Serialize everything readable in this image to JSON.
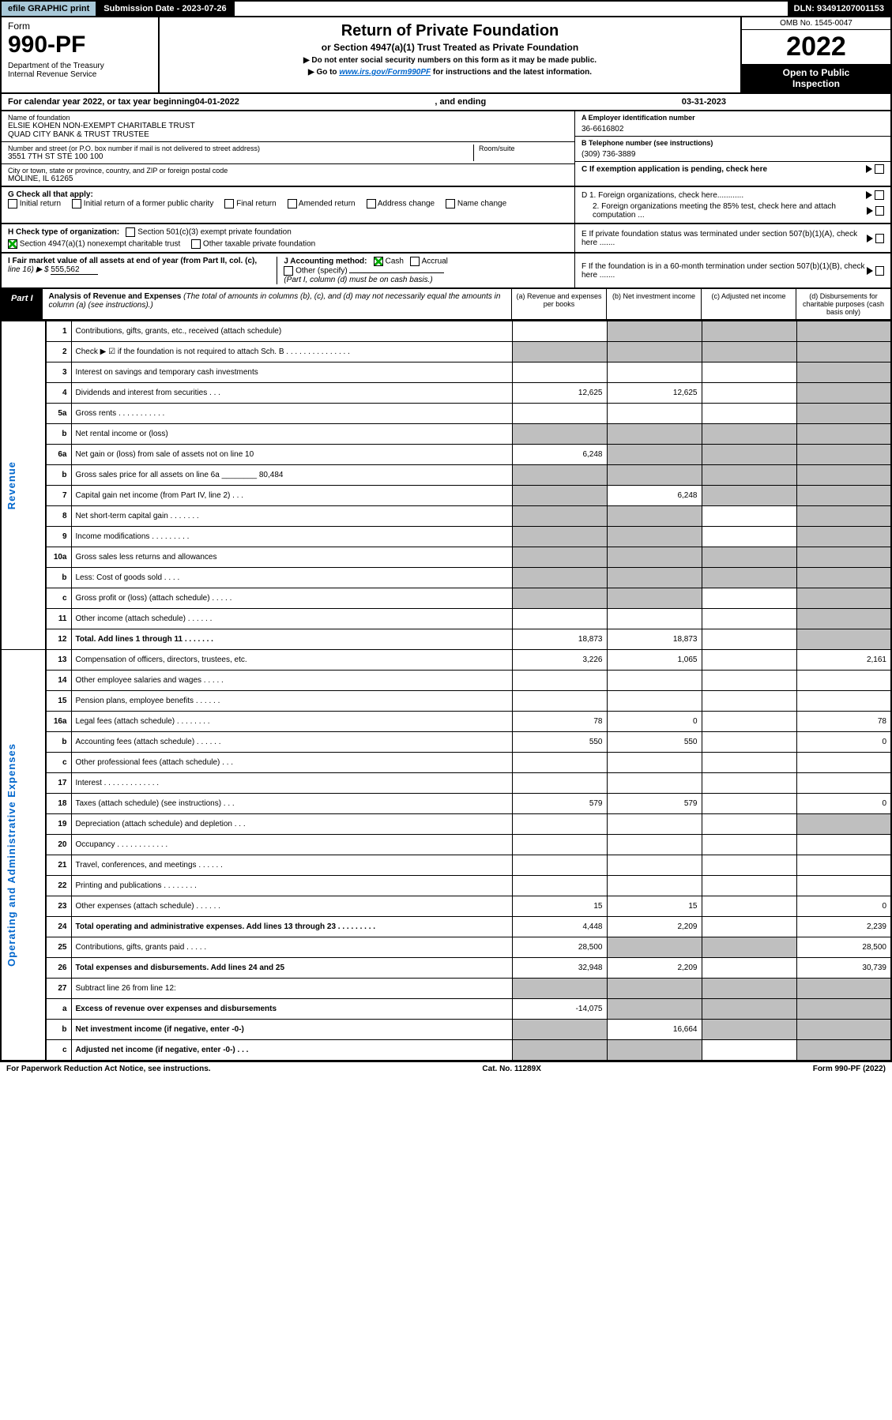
{
  "top": {
    "efile": "efile GRAPHIC print",
    "sub_label": "Submission Date - 2023-07-26",
    "dln": "DLN: 93491207001153"
  },
  "header": {
    "form_word": "Form",
    "form_no": "990-PF",
    "dept": "Department of the Treasury\nInternal Revenue Service",
    "title": "Return of Private Foundation",
    "subtitle": "or Section 4947(a)(1) Trust Treated as Private Foundation",
    "note1": "▶ Do not enter social security numbers on this form as it may be made public.",
    "note2_pre": "▶ Go to ",
    "note2_link": "www.irs.gov/Form990PF",
    "note2_post": " for instructions and the latest information.",
    "omb": "OMB No. 1545-0047",
    "year": "2022",
    "open": "Open to Public\nInspection"
  },
  "cal": {
    "pre": "For calendar year 2022, or tax year beginning ",
    "begin": "04-01-2022",
    "mid": " , and ending ",
    "end": "03-31-2023"
  },
  "info": {
    "name_lbl": "Name of foundation",
    "name": "ELSIE KOHEN NON-EXEMPT CHARITABLE TRUST\nQUAD CITY BANK & TRUST TRUSTEE",
    "addr_lbl": "Number and street (or P.O. box number if mail is not delivered to street address)",
    "addr": "3551 7TH ST STE 100 100",
    "room_lbl": "Room/suite",
    "city_lbl": "City or town, state or province, country, and ZIP or foreign postal code",
    "city": "MOLINE, IL  61265",
    "ein_lbl": "A Employer identification number",
    "ein": "36-6616802",
    "tel_lbl": "B Telephone number (see instructions)",
    "tel": "(309) 736-3889",
    "c": "C If exemption application is pending, check here",
    "d1": "D 1. Foreign organizations, check here............",
    "d2": "2. Foreign organizations meeting the 85% test, check here and attach computation ...",
    "e": "E  If private foundation status was terminated under section 507(b)(1)(A), check here .......",
    "f": "F  If the foundation is in a 60-month termination under section 507(b)(1)(B), check here .......",
    "g_lbl": "G Check all that apply:",
    "g_opts": [
      "Initial return",
      "Initial return of a former public charity",
      "Final return",
      "Amended return",
      "Address change",
      "Name change"
    ],
    "h_lbl": "H Check type of organization:",
    "h1": "Section 501(c)(3) exempt private foundation",
    "h2": "Section 4947(a)(1) nonexempt charitable trust",
    "h3": "Other taxable private foundation",
    "i_lbl": "I Fair market value of all assets at end of year (from Part II, col. (c),",
    "i_line": "line 16) ▶ $ ",
    "i_val": "555,562",
    "j_lbl": "J Accounting method:",
    "j_cash": "Cash",
    "j_accr": "Accrual",
    "j_other": "Other (specify)",
    "j_note": "(Part I, column (d) must be on cash basis.)"
  },
  "part1": {
    "label": "Part I",
    "title": "Analysis of Revenue and Expenses",
    "title_note": " (The total of amounts in columns (b), (c), and (d) may not necessarily equal the amounts in column (a) (see instructions).)",
    "col_a": "(a)   Revenue and expenses per books",
    "col_b": "(b)   Net investment income",
    "col_c": "(c)   Adjusted net income",
    "col_d": "(d)   Disbursements for charitable purposes (cash basis only)"
  },
  "side": {
    "rev": "Revenue",
    "exp": "Operating and Administrative Expenses"
  },
  "rows": [
    {
      "n": "1",
      "d": "Contributions, gifts, grants, etc., received (attach schedule)",
      "a": "",
      "b": "g",
      "c": "g",
      "dd": "g"
    },
    {
      "n": "2",
      "d": "Check ▶ ☑ if the foundation is not required to attach Sch. B       .   .   .   .   .   .   .   .   .   .   .   .   .   .   .",
      "a": "g",
      "b": "g",
      "c": "g",
      "dd": "g"
    },
    {
      "n": "3",
      "d": "Interest on savings and temporary cash investments",
      "a": "",
      "b": "",
      "c": "",
      "dd": "g"
    },
    {
      "n": "4",
      "d": "Dividends and interest from securities   .   .   .",
      "a": "12,625",
      "b": "12,625",
      "c": "",
      "dd": "g"
    },
    {
      "n": "5a",
      "d": "Gross rents   .   .   .   .   .   .   .   .   .   .   .",
      "a": "",
      "b": "",
      "c": "",
      "dd": "g"
    },
    {
      "n": "b",
      "d": "Net rental income or (loss)",
      "a": "g",
      "b": "g",
      "c": "g",
      "dd": "g"
    },
    {
      "n": "6a",
      "d": "Net gain or (loss) from sale of assets not on line 10",
      "a": "6,248",
      "b": "g",
      "c": "g",
      "dd": "g"
    },
    {
      "n": "b",
      "d": "Gross sales price for all assets on line 6a ________ 80,484",
      "a": "g",
      "b": "g",
      "c": "g",
      "dd": "g"
    },
    {
      "n": "7",
      "d": "Capital gain net income (from Part IV, line 2)   .   .   .",
      "a": "g",
      "b": "6,248",
      "c": "g",
      "dd": "g"
    },
    {
      "n": "8",
      "d": "Net short-term capital gain   .   .   .   .   .   .   .",
      "a": "g",
      "b": "g",
      "c": "",
      "dd": "g"
    },
    {
      "n": "9",
      "d": "Income modifications   .   .   .   .   .   .   .   .   .",
      "a": "g",
      "b": "g",
      "c": "",
      "dd": "g"
    },
    {
      "n": "10a",
      "d": "Gross sales less returns and allowances",
      "a": "g",
      "b": "g",
      "c": "g",
      "dd": "g"
    },
    {
      "n": "b",
      "d": "Less: Cost of goods sold   .   .   .   .",
      "a": "g",
      "b": "g",
      "c": "g",
      "dd": "g"
    },
    {
      "n": "c",
      "d": "Gross profit or (loss) (attach schedule)   .   .   .   .   .",
      "a": "g",
      "b": "g",
      "c": "",
      "dd": "g"
    },
    {
      "n": "11",
      "d": "Other income (attach schedule)   .   .   .   .   .   .",
      "a": "",
      "b": "",
      "c": "",
      "dd": "g"
    },
    {
      "n": "12",
      "d": "Total. Add lines 1 through 11   .   .   .   .   .   .   .",
      "a": "18,873",
      "b": "18,873",
      "c": "",
      "dd": "g",
      "bold": true
    },
    {
      "n": "13",
      "d": "Compensation of officers, directors, trustees, etc.",
      "a": "3,226",
      "b": "1,065",
      "c": "",
      "dd": "2,161"
    },
    {
      "n": "14",
      "d": "Other employee salaries and wages   .   .   .   .   .",
      "a": "",
      "b": "",
      "c": "",
      "dd": ""
    },
    {
      "n": "15",
      "d": "Pension plans, employee benefits   .   .   .   .   .   .",
      "a": "",
      "b": "",
      "c": "",
      "dd": ""
    },
    {
      "n": "16a",
      "d": "Legal fees (attach schedule)   .   .   .   .   .   .   .   .",
      "a": "78",
      "b": "0",
      "c": "",
      "dd": "78"
    },
    {
      "n": "b",
      "d": "Accounting fees (attach schedule)   .   .   .   .   .   .",
      "a": "550",
      "b": "550",
      "c": "",
      "dd": "0"
    },
    {
      "n": "c",
      "d": "Other professional fees (attach schedule)   .   .   .",
      "a": "",
      "b": "",
      "c": "",
      "dd": ""
    },
    {
      "n": "17",
      "d": "Interest   .   .   .   .   .   .   .   .   .   .   .   .   .",
      "a": "",
      "b": "",
      "c": "",
      "dd": ""
    },
    {
      "n": "18",
      "d": "Taxes (attach schedule) (see instructions)   .   .   .",
      "a": "579",
      "b": "579",
      "c": "",
      "dd": "0"
    },
    {
      "n": "19",
      "d": "Depreciation (attach schedule) and depletion   .   .   .",
      "a": "",
      "b": "",
      "c": "",
      "dd": "g"
    },
    {
      "n": "20",
      "d": "Occupancy   .   .   .   .   .   .   .   .   .   .   .   .",
      "a": "",
      "b": "",
      "c": "",
      "dd": ""
    },
    {
      "n": "21",
      "d": "Travel, conferences, and meetings   .   .   .   .   .   .",
      "a": "",
      "b": "",
      "c": "",
      "dd": ""
    },
    {
      "n": "22",
      "d": "Printing and publications   .   .   .   .   .   .   .   .",
      "a": "",
      "b": "",
      "c": "",
      "dd": ""
    },
    {
      "n": "23",
      "d": "Other expenses (attach schedule)   .   .   .   .   .   .",
      "a": "15",
      "b": "15",
      "c": "",
      "dd": "0"
    },
    {
      "n": "24",
      "d": "Total operating and administrative expenses. Add lines 13 through 23   .   .   .   .   .   .   .   .   .",
      "a": "4,448",
      "b": "2,209",
      "c": "",
      "dd": "2,239",
      "bold": true
    },
    {
      "n": "25",
      "d": "Contributions, gifts, grants paid   .   .   .   .   .",
      "a": "28,500",
      "b": "g",
      "c": "g",
      "dd": "28,500"
    },
    {
      "n": "26",
      "d": "Total expenses and disbursements. Add lines 24 and 25",
      "a": "32,948",
      "b": "2,209",
      "c": "",
      "dd": "30,739",
      "bold": true
    },
    {
      "n": "27",
      "d": "Subtract line 26 from line 12:",
      "a": "g",
      "b": "g",
      "c": "g",
      "dd": "g"
    },
    {
      "n": "a",
      "d": "Excess of revenue over expenses and disbursements",
      "a": "-14,075",
      "b": "g",
      "c": "g",
      "dd": "g",
      "bold": true
    },
    {
      "n": "b",
      "d": "Net investment income (if negative, enter -0-)",
      "a": "g",
      "b": "16,664",
      "c": "g",
      "dd": "g",
      "bold": true
    },
    {
      "n": "c",
      "d": "Adjusted net income (if negative, enter -0-)   .   .   .",
      "a": "g",
      "b": "g",
      "c": "",
      "dd": "g",
      "bold": true
    }
  ],
  "footer": {
    "left": "For Paperwork Reduction Act Notice, see instructions.",
    "mid": "Cat. No. 11289X",
    "right": "Form 990-PF (2022)"
  }
}
